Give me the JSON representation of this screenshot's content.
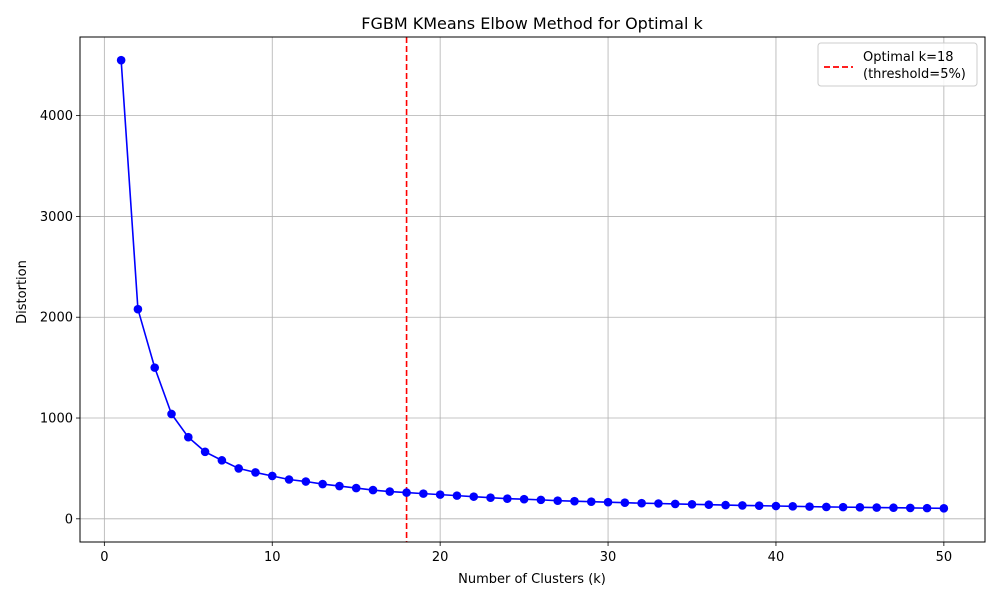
{
  "chart_data": {
    "type": "line",
    "title": "FGBM KMeans Elbow Method for Optimal k",
    "xlabel": "Number of Clusters (k)",
    "ylabel": "Distortion",
    "xlim": [
      -1.45,
      52.45
    ],
    "ylim": [
      -230,
      4780
    ],
    "xticks": [
      0,
      10,
      20,
      30,
      40,
      50
    ],
    "yticks": [
      0,
      1000,
      2000,
      3000,
      4000
    ],
    "grid": true,
    "legend_position": "top-right",
    "series": [
      {
        "color": "#0000ff",
        "marker": "circle",
        "x": [
          1,
          2,
          3,
          4,
          5,
          6,
          7,
          8,
          9,
          10,
          11,
          12,
          13,
          14,
          15,
          16,
          17,
          18,
          19,
          20,
          21,
          22,
          23,
          24,
          25,
          26,
          27,
          28,
          29,
          30,
          31,
          32,
          33,
          34,
          35,
          36,
          37,
          38,
          39,
          40,
          41,
          42,
          43,
          44,
          45,
          46,
          47,
          48,
          49,
          50
        ],
        "values": [
          4550,
          2080,
          1500,
          1040,
          810,
          665,
          580,
          500,
          460,
          425,
          390,
          370,
          345,
          325,
          305,
          285,
          270,
          260,
          250,
          240,
          230,
          220,
          210,
          200,
          195,
          188,
          180,
          175,
          170,
          165,
          160,
          155,
          152,
          148,
          144,
          140,
          136,
          133,
          130,
          127,
          124,
          121,
          118,
          116,
          114,
          112,
          110,
          108,
          106,
          104
        ]
      }
    ],
    "annotations": [
      {
        "type": "vline",
        "x": 18,
        "color": "#ff0000",
        "style": "dashed",
        "legend_line1": "Optimal k=18",
        "legend_line2": "(threshold=5%)"
      }
    ]
  }
}
